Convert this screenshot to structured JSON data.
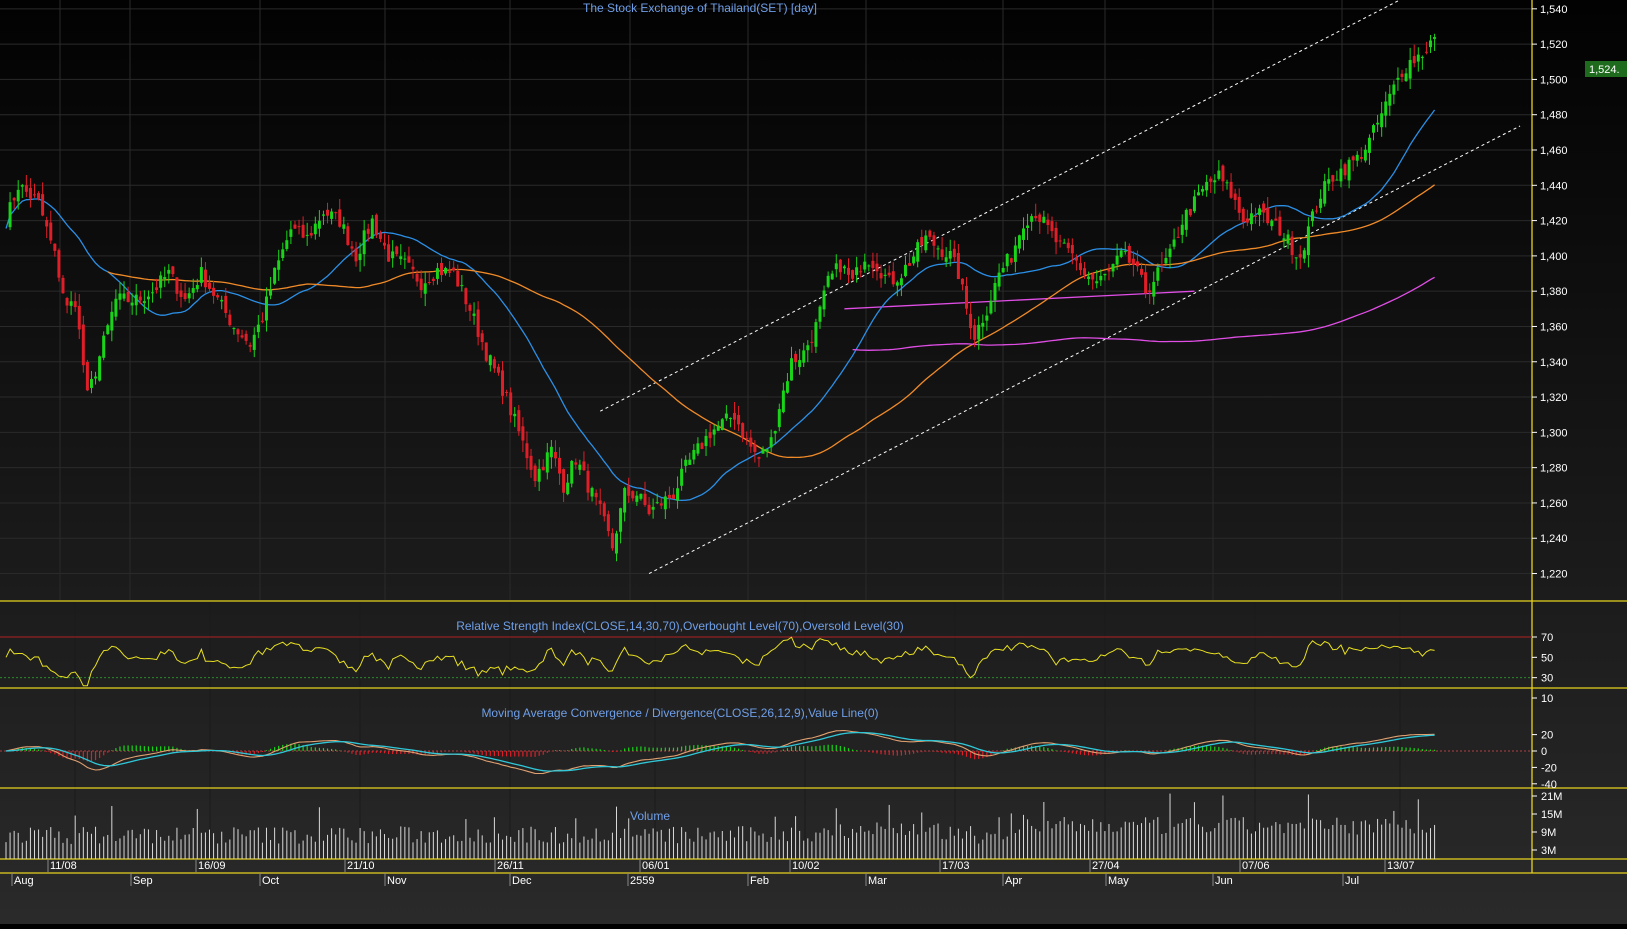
{
  "colors": {
    "background_top": "#020202",
    "background_bottom": "#2a2a2a",
    "title": "#6f9fe8",
    "grid": "#2a2a2a",
    "separator": "#e6d21e",
    "axis_text": "#ffffff",
    "candle_up": "#19d419",
    "candle_down": "#e01e28",
    "ma_short": "#2b8fe6",
    "ma_mid": "#f08a28",
    "ma_long": "#e04ee6",
    "channel": "#ffffff",
    "rsi": "#e8e020",
    "rsi_overbought": "#b02020",
    "rsi_oversold": "#2a8a2a",
    "macd": "#e0a070",
    "signal": "#30c8d8",
    "hist_up": "#19d419",
    "hist_down": "#e01e28",
    "volume": "#d8d8d8",
    "last_price_bg": "#1e6b1e"
  },
  "main_panel": {
    "title": "The Stock Exchange of Thailand(SET) [day]",
    "last_price_label": "1,524."
  },
  "rsi_panel": {
    "title": "Relative Strength Index(CLOSE,14,30,70),Overbought Level(70),Oversold Level(30)"
  },
  "macd_panel": {
    "title": "Moving Average Convergence / Divergence(CLOSE,26,12,9),Value Line(0)"
  },
  "volume_panel": {
    "title": "Volume"
  },
  "chart_data": {
    "type": "candlestick",
    "title": "The Stock Exchange of Thailand(SET) [day]",
    "price_axis": {
      "range": [
        1205,
        1545
      ],
      "ticks": [
        1220,
        1240,
        1260,
        1280,
        1300,
        1320,
        1340,
        1360,
        1380,
        1400,
        1420,
        1440,
        1460,
        1480,
        1500,
        1520,
        1540
      ],
      "tick_labels": [
        "1,220",
        "1,240",
        "1,260",
        "1,280",
        "1,300",
        "1,320",
        "1,340",
        "1,360",
        "1,380",
        "1,400",
        "1,420",
        "1,440",
        "1,460",
        "1,480",
        "1,500",
        "1,520",
        "1,540"
      ]
    },
    "date_axis": {
      "upper_labels": [
        "11/08",
        "16/09",
        "21/10",
        "26/11",
        "06/01",
        "10/02",
        "17/03",
        "27/04",
        "07/06",
        "13/07"
      ],
      "lower_labels": [
        "Aug",
        "Sep",
        "Oct",
        "Nov",
        "Dec",
        "2559",
        "Feb",
        "Mar",
        "Apr",
        "May",
        "Jun",
        "Jul"
      ]
    },
    "close_anchors": [
      [
        0,
        1420
      ],
      [
        3,
        1440
      ],
      [
        8,
        1430
      ],
      [
        12,
        1400
      ],
      [
        15,
        1370
      ],
      [
        17,
        1375
      ],
      [
        20,
        1320
      ],
      [
        22,
        1335
      ],
      [
        27,
        1375
      ],
      [
        32,
        1375
      ],
      [
        36,
        1380
      ],
      [
        40,
        1390
      ],
      [
        44,
        1375
      ],
      [
        48,
        1390
      ],
      [
        52,
        1375
      ],
      [
        56,
        1360
      ],
      [
        60,
        1350
      ],
      [
        63,
        1365
      ],
      [
        66,
        1390
      ],
      [
        70,
        1415
      ],
      [
        74,
        1410
      ],
      [
        78,
        1425
      ],
      [
        82,
        1420
      ],
      [
        86,
        1400
      ],
      [
        90,
        1420
      ],
      [
        94,
        1400
      ],
      [
        98,
        1395
      ],
      [
        102,
        1385
      ],
      [
        106,
        1392
      ],
      [
        110,
        1390
      ],
      [
        114,
        1370
      ],
      [
        118,
        1345
      ],
      [
        122,
        1325
      ],
      [
        126,
        1300
      ],
      [
        130,
        1275
      ],
      [
        134,
        1290
      ],
      [
        137,
        1270
      ],
      [
        140,
        1285
      ],
      [
        143,
        1270
      ],
      [
        146,
        1255
      ],
      [
        149,
        1235
      ],
      [
        152,
        1265
      ],
      [
        155,
        1265
      ],
      [
        158,
        1255
      ],
      [
        161,
        1260
      ],
      [
        164,
        1265
      ],
      [
        167,
        1280
      ],
      [
        170,
        1290
      ],
      [
        173,
        1300
      ],
      [
        176,
        1305
      ],
      [
        179,
        1310
      ],
      [
        182,
        1295
      ],
      [
        185,
        1285
      ],
      [
        188,
        1295
      ],
      [
        190,
        1315
      ],
      [
        193,
        1340
      ],
      [
        196,
        1345
      ],
      [
        199,
        1360
      ],
      [
        202,
        1385
      ],
      [
        205,
        1395
      ],
      [
        208,
        1385
      ],
      [
        211,
        1400
      ],
      [
        214,
        1395
      ],
      [
        217,
        1385
      ],
      [
        220,
        1390
      ],
      [
        223,
        1400
      ],
      [
        226,
        1410
      ],
      [
        229,
        1405
      ],
      [
        232,
        1400
      ],
      [
        234,
        1390
      ],
      [
        236,
        1370
      ],
      [
        238,
        1355
      ],
      [
        241,
        1370
      ],
      [
        244,
        1390
      ],
      [
        247,
        1400
      ],
      [
        250,
        1420
      ],
      [
        253,
        1425
      ],
      [
        256,
        1415
      ],
      [
        259,
        1405
      ],
      [
        262,
        1400
      ],
      [
        265,
        1390
      ],
      [
        268,
        1385
      ],
      [
        271,
        1390
      ],
      [
        274,
        1400
      ],
      [
        277,
        1395
      ],
      [
        280,
        1380
      ],
      [
        283,
        1390
      ],
      [
        286,
        1400
      ],
      [
        289,
        1420
      ],
      [
        292,
        1430
      ],
      [
        295,
        1440
      ],
      [
        298,
        1445
      ],
      [
        301,
        1435
      ],
      [
        304,
        1420
      ],
      [
        307,
        1425
      ],
      [
        310,
        1420
      ],
      [
        313,
        1415
      ],
      [
        316,
        1405
      ],
      [
        318,
        1400
      ],
      [
        320,
        1415
      ],
      [
        323,
        1435
      ],
      [
        326,
        1445
      ],
      [
        329,
        1450
      ],
      [
        332,
        1455
      ],
      [
        335,
        1465
      ],
      [
        338,
        1480
      ],
      [
        341,
        1495
      ],
      [
        343,
        1505
      ],
      [
        345,
        1510
      ],
      [
        348,
        1515
      ],
      [
        351,
        1524
      ]
    ],
    "moving_averages": [
      {
        "period": 26,
        "color_key": "ma_short"
      },
      {
        "period": 75,
        "color_key": "ma_mid"
      },
      {
        "period": 200,
        "color_key": "ma_long",
        "visible_from": 208
      }
    ],
    "channel_lines": [
      {
        "from": [
          158,
          1220
        ],
        "to": [
          293,
          1380
        ],
        "extend_to": 372,
        "style": "dotted"
      },
      {
        "from": [
          146,
          1312
        ],
        "to": [
          345,
          1548
        ],
        "style": "dotted"
      }
    ],
    "rsi": {
      "range": [
        0,
        100
      ],
      "ticks": [
        10,
        30,
        50,
        70
      ],
      "overbought": 70,
      "oversold": 30
    },
    "macd": {
      "range": [
        -48,
        36
      ],
      "ticks": [
        -40,
        -20,
        0,
        20
      ],
      "value_line": 0
    },
    "volume": {
      "range": [
        0,
        23
      ],
      "ticks": [
        3,
        9,
        15,
        21
      ],
      "tick_labels": [
        "3M",
        "9M",
        "15M",
        "21M"
      ]
    }
  }
}
